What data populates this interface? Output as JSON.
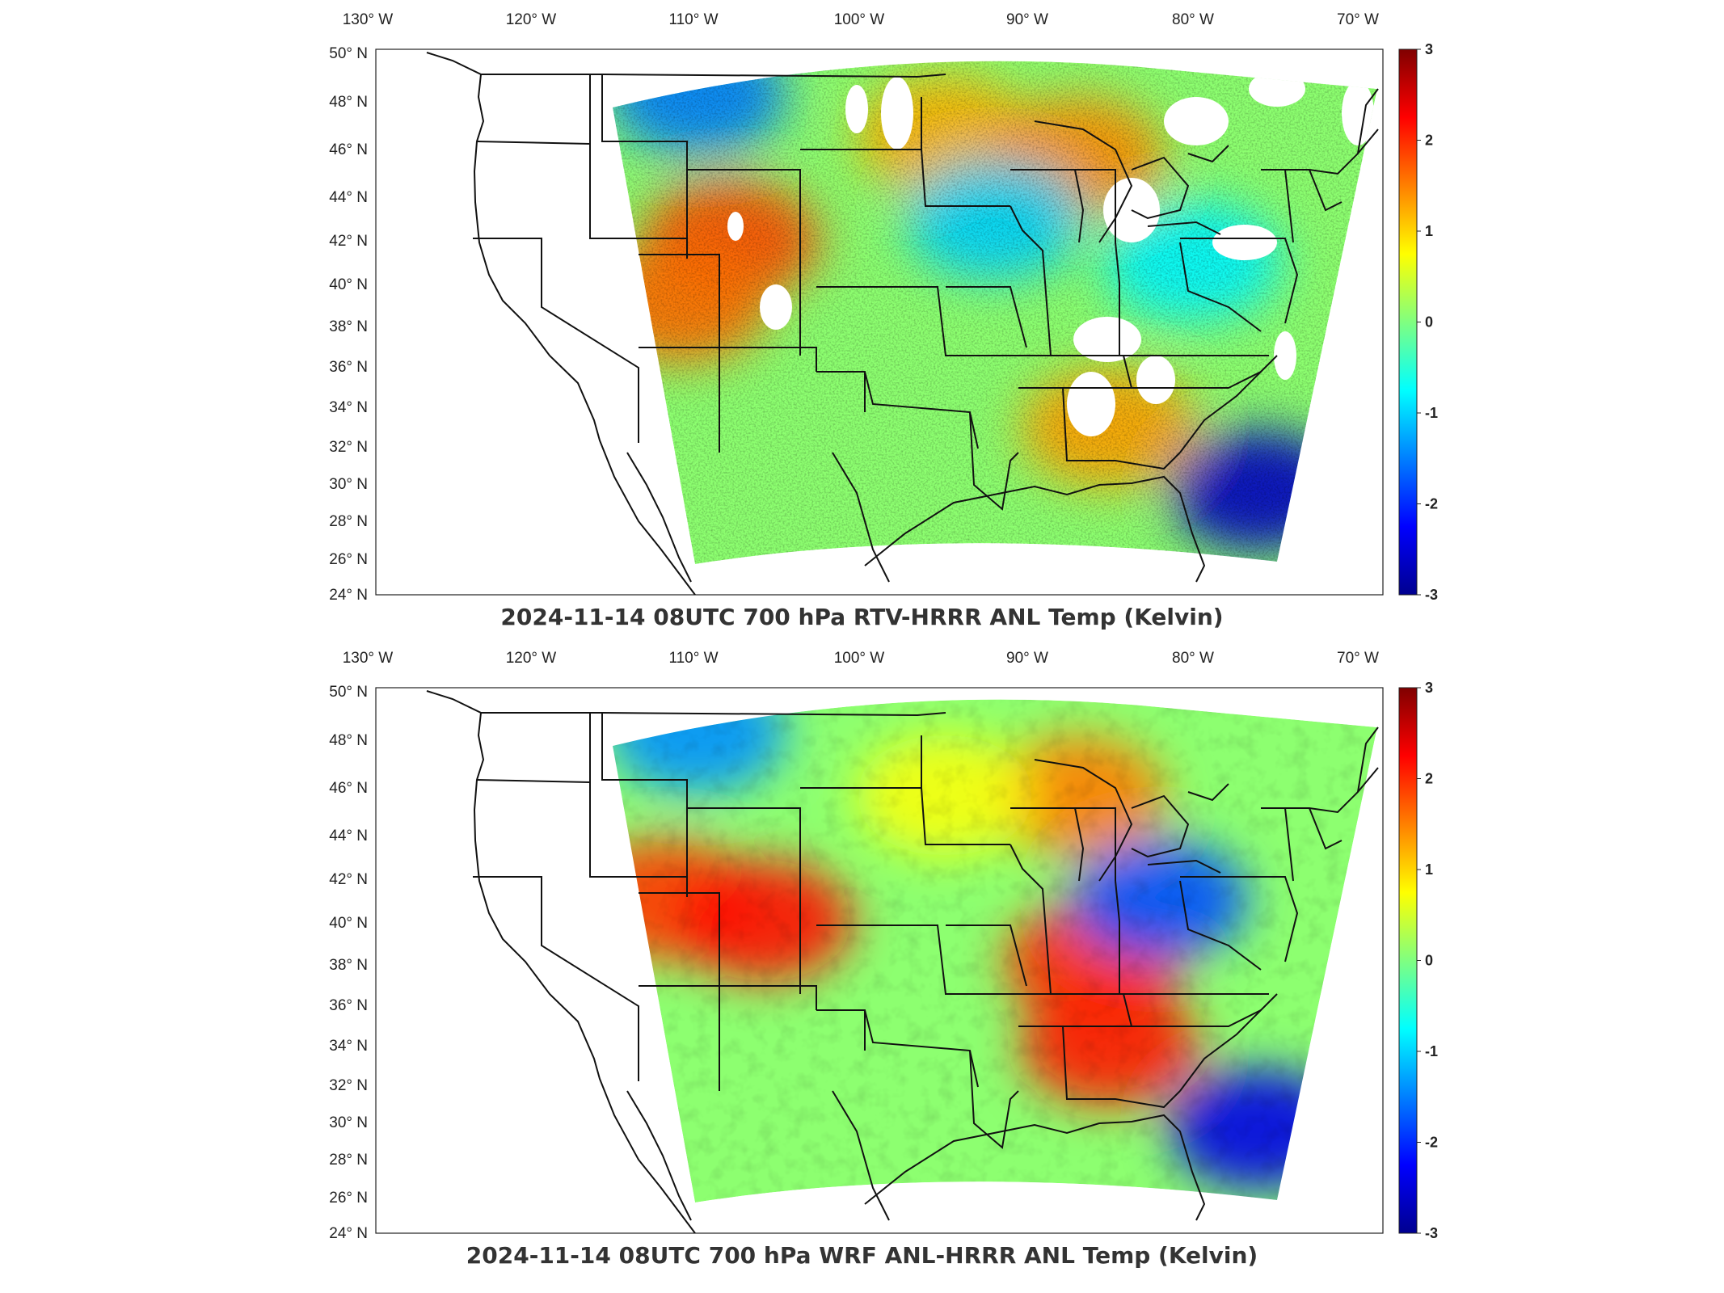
{
  "chart_data": [
    {
      "type": "heatmap",
      "title": "2024-11-14 08UTC 700 hPa RTV-HRRR ANL Temp (Kelvin)",
      "x_ticks": [
        "130° W",
        "120° W",
        "110° W",
        "100° W",
        "90° W",
        "80° W",
        "70° W"
      ],
      "x_tick_values": [
        -130,
        -120,
        -110,
        -100,
        -90,
        -80,
        -70
      ],
      "y_ticks": [
        "50° N",
        "48° N",
        "46° N",
        "44° N",
        "42° N",
        "40° N",
        "38° N",
        "36° N",
        "34° N",
        "32° N",
        "30° N",
        "28° N",
        "26° N",
        "24° N"
      ],
      "y_tick_values": [
        50,
        48,
        46,
        44,
        42,
        40,
        38,
        36,
        34,
        32,
        30,
        28,
        26,
        24
      ],
      "colorbar": {
        "min": -3,
        "max": 3,
        "ticks": [
          "3",
          "2",
          "1",
          "0",
          "-1",
          "-2",
          "-3"
        ],
        "colormap": "jet"
      },
      "regions": [
        {
          "lon": -108,
          "lat": 41,
          "value": 1.8
        },
        {
          "lon": -111,
          "lat": 38,
          "value": 1.6
        },
        {
          "lon": -95,
          "lat": 46,
          "value": 1.2
        },
        {
          "lon": -85,
          "lat": 32,
          "value": 1.3
        },
        {
          "lon": -87,
          "lat": 45,
          "value": 1.4
        },
        {
          "lon": -92,
          "lat": 42,
          "value": -1.0
        },
        {
          "lon": -110,
          "lat": 48,
          "value": -1.5
        },
        {
          "lon": -76,
          "lat": 29,
          "value": -2.6
        },
        {
          "lon": -80,
          "lat": 40,
          "value": -0.8
        }
      ],
      "missing_data": true
    },
    {
      "type": "heatmap",
      "title": "2024-11-14 08UTC 700 hPa WRF ANL-HRRR ANL Temp (Kelvin)",
      "x_ticks": [
        "130° W",
        "120° W",
        "110° W",
        "100° W",
        "90° W",
        "80° W",
        "70° W"
      ],
      "x_tick_values": [
        -130,
        -120,
        -110,
        -100,
        -90,
        -80,
        -70
      ],
      "y_ticks": [
        "50° N",
        "48° N",
        "46° N",
        "44° N",
        "42° N",
        "40° N",
        "38° N",
        "36° N",
        "34° N",
        "32° N",
        "30° N",
        "28° N",
        "26° N",
        "24° N"
      ],
      "y_tick_values": [
        50,
        48,
        46,
        44,
        42,
        40,
        38,
        36,
        34,
        32,
        30,
        28,
        26,
        24
      ],
      "colorbar": {
        "min": -3,
        "max": 3,
        "ticks": [
          "3",
          "2",
          "1",
          "0",
          "-1",
          "-2",
          "-3"
        ],
        "colormap": "jet"
      },
      "regions": [
        {
          "lon": -112,
          "lat": 40,
          "value": 1.9
        },
        {
          "lon": -106,
          "lat": 39,
          "value": 2.2
        },
        {
          "lon": -86,
          "lat": 37,
          "value": 2.0
        },
        {
          "lon": -85,
          "lat": 33,
          "value": 2.1
        },
        {
          "lon": -87,
          "lat": 45,
          "value": 1.5
        },
        {
          "lon": -110,
          "lat": 48,
          "value": -1.4
        },
        {
          "lon": -82,
          "lat": 40,
          "value": -1.8
        },
        {
          "lon": -76,
          "lat": 29,
          "value": -2.4
        },
        {
          "lon": -95,
          "lat": 45,
          "value": 0.7
        }
      ],
      "missing_data": false
    }
  ]
}
